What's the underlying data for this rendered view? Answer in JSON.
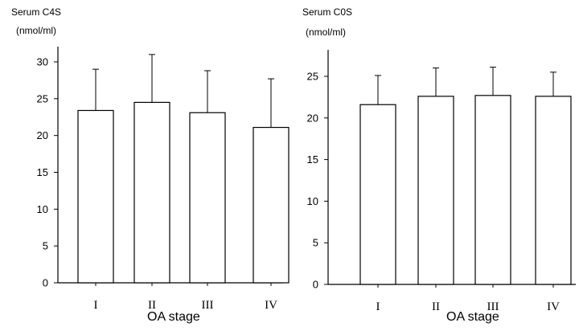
{
  "chart_data": [
    {
      "type": "bar",
      "ylabel_line1": "Serum C4S",
      "ylabel_line2": "(nmol/ml)",
      "xlabel": "OA stage",
      "categories": [
        "I",
        "II",
        "III",
        "IV"
      ],
      "values": [
        23.4,
        24.5,
        23.1,
        21.1
      ],
      "errors": [
        5.6,
        6.5,
        5.7,
        6.6
      ],
      "ylim": [
        0,
        30
      ],
      "yticks": [
        0,
        5,
        10,
        15,
        20,
        25,
        30
      ],
      "bar_fill": "#ffffff",
      "bar_stroke": "#000000",
      "grid": false
    },
    {
      "type": "bar",
      "ylabel_line1": "Serum C0S",
      "ylabel_line2": "(nmol/ml)",
      "xlabel": "OA stage",
      "categories": [
        "I",
        "II",
        "III",
        "IV"
      ],
      "values": [
        21.6,
        22.6,
        22.7,
        22.6
      ],
      "errors": [
        3.5,
        3.4,
        3.4,
        2.9
      ],
      "ylim": [
        0,
        25
      ],
      "yticks": [
        0,
        5,
        10,
        15,
        20,
        25
      ],
      "bar_fill": "#ffffff",
      "bar_stroke": "#000000",
      "grid": false
    }
  ]
}
